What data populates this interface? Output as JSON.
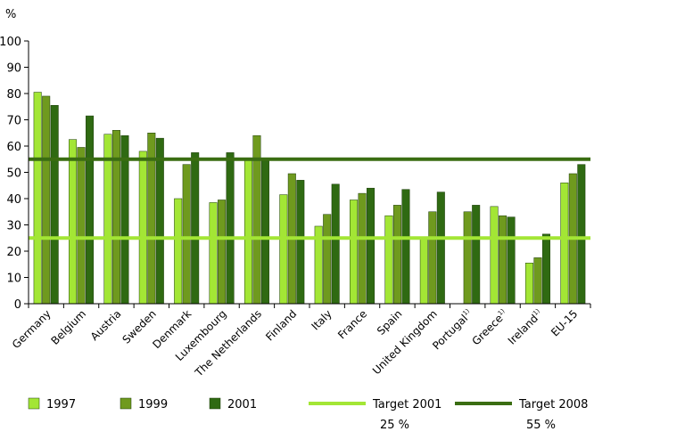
{
  "chart_data": {
    "type": "bar",
    "ylabel": "%",
    "ylim": [
      0,
      100
    ],
    "yticks": [
      0,
      10,
      20,
      30,
      40,
      50,
      60,
      70,
      80,
      90,
      100
    ],
    "grid": false,
    "legend_position": "bottom",
    "categories": [
      "Germany",
      "Belgium",
      "Austria",
      "Sweden",
      "Denmark",
      "Luxembourg",
      "The Netherlands",
      "Finland",
      "Italy",
      "France",
      "Spain",
      "United Kingdom",
      "Portugal",
      "Greece",
      "Ireland",
      "EU-15"
    ],
    "category_footnotes": [
      "",
      "",
      "",
      "",
      "",
      "",
      "",
      "",
      "",
      "",
      "",
      "",
      "1)",
      "1)",
      "1)",
      ""
    ],
    "series": [
      {
        "name": "1997",
        "color": "#a3e635",
        "values": [
          80.5,
          62.5,
          64.5,
          58,
          40,
          38.5,
          55.5,
          41.5,
          29.5,
          39.5,
          33.5,
          24.5,
          null,
          37,
          15.5,
          46
        ]
      },
      {
        "name": "1999",
        "color": "#6f9a1e",
        "values": [
          79,
          59.5,
          66,
          65,
          53,
          39.5,
          64,
          49.5,
          34,
          42,
          37.5,
          35,
          35,
          33.5,
          17.5,
          49.5
        ]
      },
      {
        "name": "2001",
        "color": "#2f6a12",
        "values": [
          75.5,
          71.5,
          64,
          63,
          57.5,
          57.5,
          55,
          47,
          45.5,
          44,
          43.5,
          42.5,
          37.5,
          33,
          26.5,
          53
        ]
      }
    ],
    "targets": [
      {
        "name": "Target 2001",
        "value": 25,
        "label": "25 %",
        "color": "#a3e635"
      },
      {
        "name": "Target 2008",
        "value": 55,
        "label": "55 %",
        "color": "#3a6d12"
      }
    ]
  }
}
